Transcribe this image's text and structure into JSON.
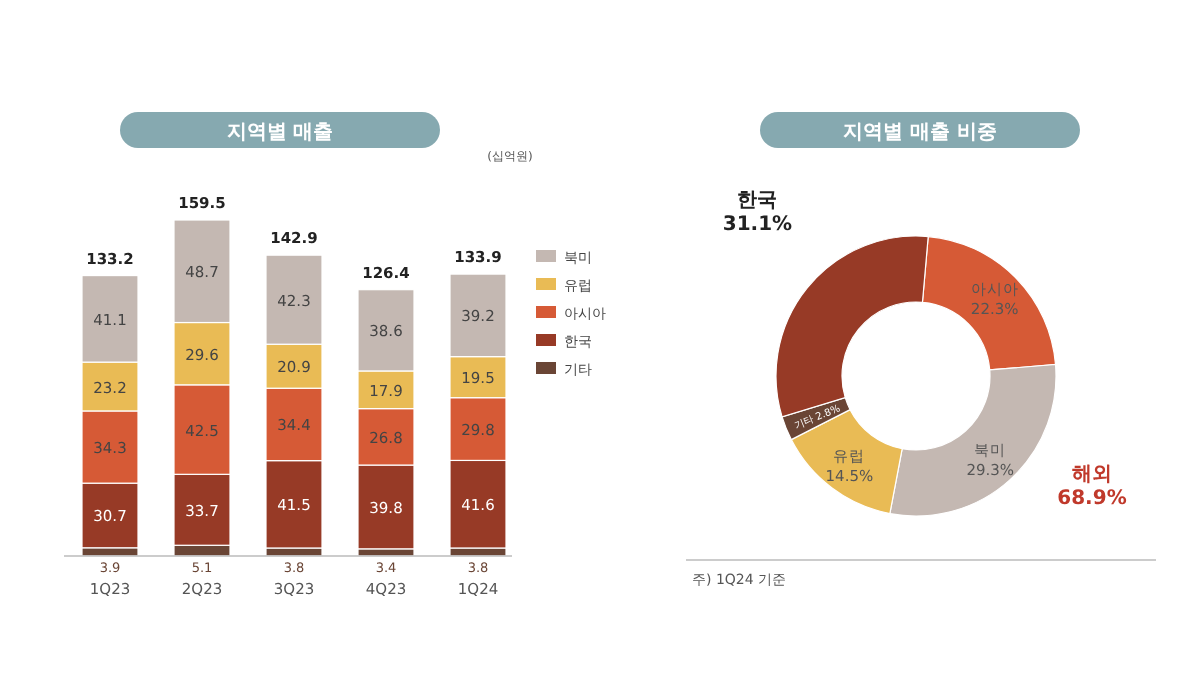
{
  "chart_data": [
    {
      "type": "bar",
      "title": "지역별 매출",
      "ylabel": "(십억원)",
      "stacked": true,
      "data_labels": true,
      "legend": "right",
      "categories": [
        "1Q23",
        "2Q23",
        "3Q23",
        "4Q23",
        "1Q24"
      ],
      "series": [
        {
          "name": "기타",
          "color": "#6a4535",
          "values": [
            3.9,
            5.1,
            3.8,
            3.4,
            3.8
          ]
        },
        {
          "name": "한국",
          "color": "#973a26",
          "values": [
            30.7,
            33.7,
            41.5,
            39.8,
            41.6
          ]
        },
        {
          "name": "아시아",
          "color": "#d65a36",
          "values": [
            34.3,
            42.5,
            34.4,
            26.8,
            29.8
          ]
        },
        {
          "name": "유럽",
          "color": "#e9bb55",
          "values": [
            23.2,
            29.6,
            20.9,
            17.9,
            19.5
          ]
        },
        {
          "name": "북미",
          "color": "#c4b8b2",
          "values": [
            41.1,
            48.7,
            42.3,
            38.6,
            39.2
          ]
        }
      ],
      "totals": [
        "133.2",
        "159.5",
        "142.9",
        "126.4",
        "133.9"
      ]
    },
    {
      "type": "donut",
      "title": "지역별 매출 비중",
      "categories": [
        "아시아",
        "북미",
        "유럽",
        "기타",
        "한국"
      ],
      "values": [
        22.3,
        29.3,
        14.5,
        2.8,
        31.1
      ],
      "value_labels": [
        "22.3%",
        "29.3%",
        "14.5%",
        "2.8%",
        "31.1%"
      ],
      "colors": [
        "#d65a36",
        "#c4b8b2",
        "#e9bb55",
        "#6a4535",
        "#973a26"
      ],
      "annotations": [
        "해외 68.9%",
        "주) 1Q24 기준"
      ]
    }
  ]
}
